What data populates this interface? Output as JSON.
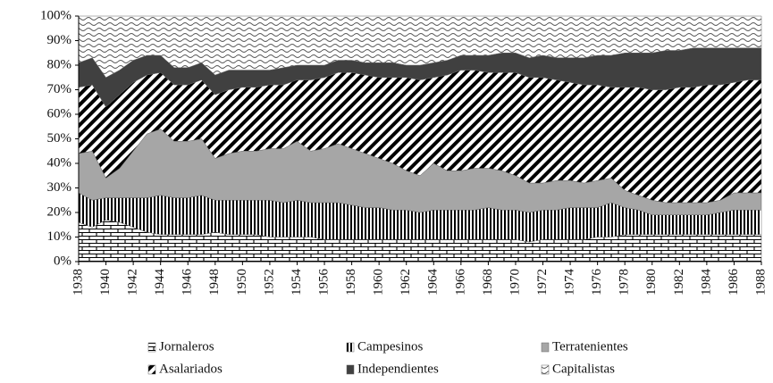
{
  "chart_data": {
    "type": "stacked_area",
    "x": [
      1938,
      1939,
      1940,
      1941,
      1942,
      1943,
      1944,
      1945,
      1946,
      1947,
      1948,
      1949,
      1950,
      1951,
      1952,
      1953,
      1954,
      1955,
      1956,
      1957,
      1958,
      1959,
      1960,
      1961,
      1962,
      1963,
      1964,
      1965,
      1966,
      1967,
      1968,
      1969,
      1970,
      1971,
      1972,
      1973,
      1974,
      1975,
      1976,
      1977,
      1978,
      1979,
      1980,
      1981,
      1982,
      1983,
      1984,
      1985,
      1986,
      1987,
      1988
    ],
    "xlim": [
      1938,
      1988
    ],
    "xticks": [
      1938,
      1940,
      1942,
      1944,
      1946,
      1948,
      1950,
      1952,
      1954,
      1956,
      1958,
      1960,
      1962,
      1964,
      1966,
      1968,
      1970,
      1972,
      1974,
      1976,
      1978,
      1980,
      1982,
      1984,
      1986,
      1988
    ],
    "ylim": [
      0,
      100
    ],
    "yticks": [
      {
        "value": 0,
        "label": "0%"
      },
      {
        "value": 10,
        "label": "10%"
      },
      {
        "value": 20,
        "label": "20%"
      },
      {
        "value": 30,
        "label": "30%"
      },
      {
        "value": 40,
        "label": "40%"
      },
      {
        "value": 50,
        "label": "50%"
      },
      {
        "value": 60,
        "label": "60%"
      },
      {
        "value": 70,
        "label": "70%"
      },
      {
        "value": 80,
        "label": "80%"
      },
      {
        "value": 90,
        "label": "90%"
      },
      {
        "value": 100,
        "label": "100%"
      }
    ],
    "legend": "bottom",
    "series": [
      {
        "name": "Jornaleros",
        "color": "#ffffff",
        "pattern": "brick",
        "values": [
          16,
          14,
          17,
          16,
          14,
          12,
          11,
          11,
          11,
          11,
          12,
          11,
          11,
          11,
          10,
          10,
          10,
          10,
          9,
          9,
          9,
          9,
          9,
          9,
          9,
          9,
          9,
          9,
          9,
          9,
          9,
          9,
          9,
          8,
          9,
          9,
          9,
          9,
          10,
          10,
          11,
          11,
          11,
          11,
          11,
          11,
          11,
          11,
          11,
          11,
          11
        ]
      },
      {
        "name": "Campesinos",
        "color": "#ffffff",
        "pattern": "vstripe",
        "values": [
          12,
          11,
          9,
          10,
          12,
          14,
          16,
          15,
          15,
          16,
          13,
          14,
          14,
          14,
          15,
          14,
          15,
          14,
          15,
          15,
          14,
          13,
          13,
          12,
          12,
          11,
          12,
          12,
          12,
          12,
          13,
          12,
          12,
          12,
          12,
          12,
          13,
          13,
          12,
          14,
          11,
          10,
          8,
          8,
          8,
          8,
          8,
          9,
          10,
          10,
          10
        ]
      },
      {
        "name": "Terratenientes",
        "color": "#a6a6a6",
        "pattern": "solid",
        "values": [
          16,
          20,
          8,
          12,
          19,
          26,
          27,
          23,
          23,
          23,
          17,
          19,
          20,
          20,
          21,
          22,
          24,
          21,
          22,
          24,
          23,
          22,
          20,
          19,
          16,
          15,
          19,
          16,
          16,
          17,
          16,
          16,
          14,
          12,
          11,
          12,
          11,
          10,
          11,
          10,
          7,
          6,
          6,
          5,
          5,
          5,
          5,
          5,
          7,
          7,
          7
        ]
      },
      {
        "name": "Asalariados",
        "color": "#ffffff",
        "pattern": "diag",
        "values": [
          27,
          27,
          29,
          30,
          28,
          24,
          23,
          23,
          23,
          24,
          26,
          26,
          26,
          26,
          26,
          26,
          25,
          29,
          29,
          29,
          31,
          32,
          33,
          35,
          38,
          39,
          35,
          39,
          41,
          40,
          39,
          40,
          42,
          43,
          43,
          41,
          40,
          40,
          39,
          37,
          42,
          44,
          45,
          46,
          47,
          47,
          48,
          47,
          45,
          46,
          46
        ]
      },
      {
        "name": "Independientes",
        "color": "#404040",
        "pattern": "solid",
        "values": [
          10,
          11,
          12,
          10,
          9,
          8,
          7,
          7,
          7,
          7,
          8,
          8,
          7,
          7,
          6,
          7,
          6,
          6,
          5,
          5,
          5,
          5,
          6,
          6,
          5,
          6,
          6,
          6,
          6,
          6,
          7,
          8,
          8,
          8,
          9,
          9,
          10,
          11,
          12,
          13,
          14,
          14,
          15,
          16,
          15,
          16,
          15,
          15,
          14,
          13,
          13
        ]
      },
      {
        "name": "Capitalistas",
        "color": "#ffffff",
        "pattern": "wave",
        "values": [
          19,
          17,
          25,
          22,
          18,
          16,
          16,
          21,
          21,
          19,
          24,
          22,
          22,
          22,
          22,
          21,
          20,
          20,
          20,
          18,
          18,
          19,
          19,
          19,
          20,
          20,
          19,
          18,
          16,
          16,
          16,
          15,
          15,
          17,
          16,
          17,
          17,
          17,
          16,
          16,
          15,
          15,
          15,
          14,
          14,
          13,
          13,
          13,
          13,
          13,
          13
        ]
      }
    ]
  }
}
